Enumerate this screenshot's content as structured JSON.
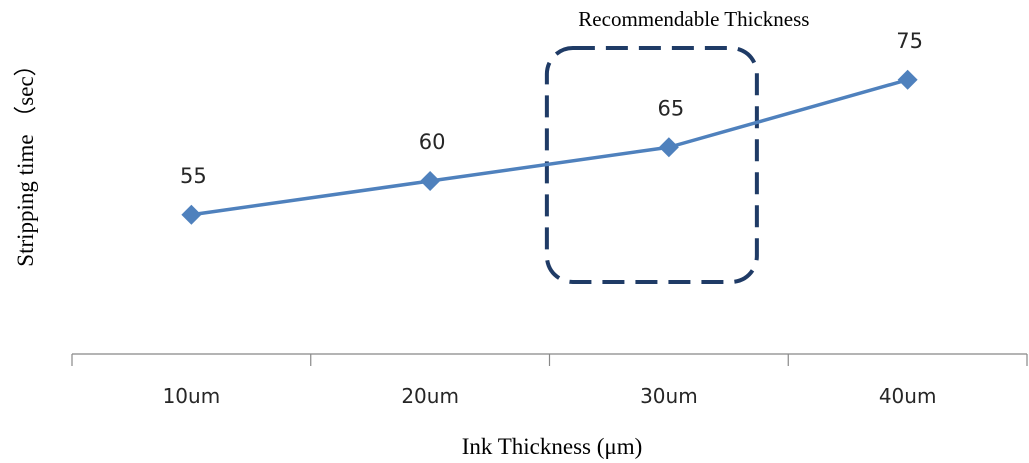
{
  "chart_data": {
    "type": "line",
    "categories": [
      "10um",
      "20um",
      "30um",
      "40um"
    ],
    "series": [
      {
        "values": [
          55,
          60,
          65,
          75
        ]
      }
    ],
    "data_labels": [
      "55",
      "60",
      "65",
      "75"
    ],
    "xlabel": "Ink  Thickness (μm)",
    "ylabel": "Stripping  time （sec）",
    "annotation": {
      "text": "Recommendable Thickness",
      "target_category": "30um"
    },
    "ylim": [
      40,
      80
    ],
    "grid": false,
    "legend": "none",
    "colors": {
      "series": "#4f81bd",
      "annotation_box": "#1f3b66",
      "axis": "#888888"
    }
  }
}
